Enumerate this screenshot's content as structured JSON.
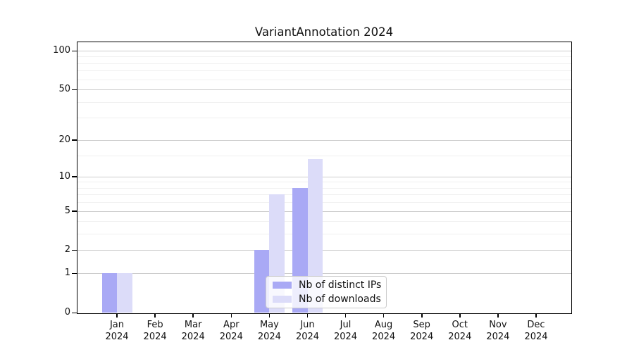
{
  "chart_data": {
    "type": "bar",
    "title": "VariantAnnotation 2024",
    "x_year": "2024",
    "categories": [
      "Jan",
      "Feb",
      "Mar",
      "Apr",
      "May",
      "Jun",
      "Jul",
      "Aug",
      "Sep",
      "Oct",
      "Nov",
      "Dec"
    ],
    "series": [
      {
        "name": "Nb of distinct IPs",
        "color": "#a9a9f5",
        "values": [
          1,
          0,
          0,
          0,
          2,
          8,
          0,
          0,
          0,
          0,
          0,
          0
        ]
      },
      {
        "name": "Nb of downloads",
        "color": "#dcdcf9",
        "values": [
          1,
          0,
          0,
          0,
          7,
          14,
          0,
          0,
          0,
          0,
          0,
          0
        ]
      }
    ],
    "yscale": "log1p",
    "ylim": [
      0,
      117
    ],
    "yticks": [
      0,
      1,
      2,
      5,
      10,
      20,
      50,
      100
    ],
    "minor_gridlines": [
      3,
      4,
      6,
      7,
      8,
      9,
      15,
      30,
      40,
      60,
      70,
      80,
      90
    ],
    "grid": "horizontal",
    "legend": {
      "position": "lower-center"
    }
  },
  "colors": {
    "major_grid": "#cdcdcd",
    "minor_grid": "#f0f0f0",
    "spine": "#000000",
    "legend_border": "#cccccc",
    "background": "#ffffff"
  }
}
